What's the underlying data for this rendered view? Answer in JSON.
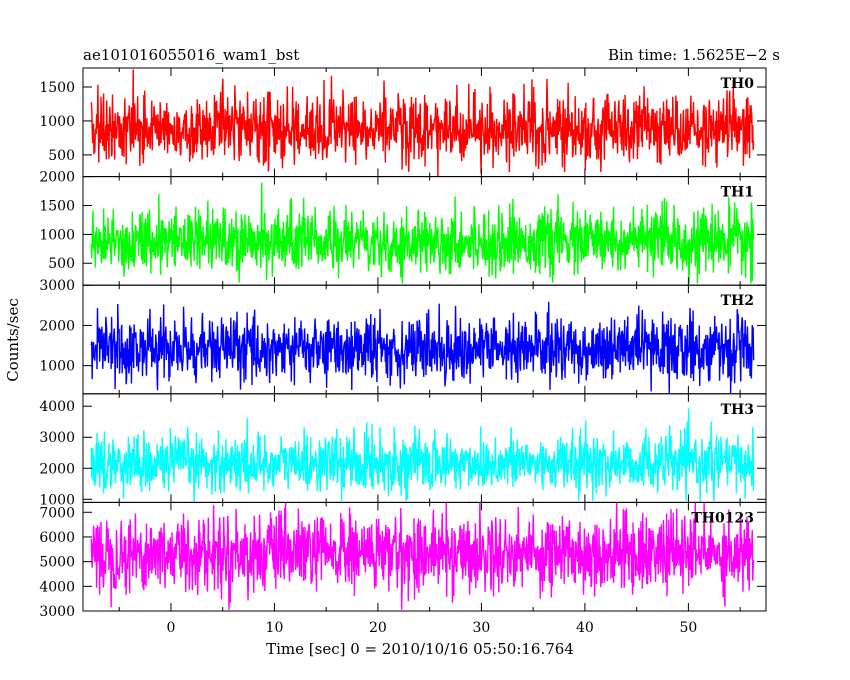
{
  "header": {
    "left_title": "ae101016055016_wam1_bst",
    "right_title": "Bin time: 1.5625E−2 s"
  },
  "chart_data": {
    "type": "line",
    "ylabel": "Counts/sec",
    "xlabel": "Time [sec] 0 = 2010/10/16 05:50:16.764",
    "xlim": [
      -8.5,
      57.5
    ],
    "data_x_range": [
      -7.7,
      56.3
    ],
    "x_ticks": [
      0,
      10,
      20,
      30,
      40,
      50
    ],
    "grid": false,
    "panels": [
      {
        "name": "TH0",
        "color": "#ff0000",
        "ylim": [
          180,
          1780
        ],
        "y_ticks": [
          500,
          1000,
          1500
        ],
        "y_tick_labels": [
          "500",
          "1000",
          "1500"
        ],
        "mean": 880,
        "std": 260,
        "min": 180,
        "max": 1760
      },
      {
        "name": "TH1",
        "color": "#00ff00",
        "ylim": [
          120,
          2000
        ],
        "y_ticks": [
          500,
          1000,
          1500,
          2000
        ],
        "y_tick_labels": [
          "500",
          "1000",
          "1500",
          "2000"
        ],
        "mean": 880,
        "std": 270,
        "min": 150,
        "max": 1900
      },
      {
        "name": "TH2",
        "color": "#0000ff",
        "ylim": [
          300,
          3000
        ],
        "y_ticks": [
          1000,
          2000,
          3000
        ],
        "y_tick_labels": [
          "1000",
          "2000",
          "3000"
        ],
        "mean": 1420,
        "std": 400,
        "min": 300,
        "max": 3000
      },
      {
        "name": "TH3",
        "color": "#00ffff",
        "ylim": [
          900,
          4400
        ],
        "y_ticks": [
          1000,
          2000,
          3000,
          4000
        ],
        "y_tick_labels": [
          "1000",
          "2000",
          "3000",
          "4000"
        ],
        "mean": 2170,
        "std": 460,
        "min": 900,
        "max": 4350
      },
      {
        "name": "TH0123",
        "color": "#ff00ff",
        "ylim": [
          3000,
          7400
        ],
        "y_ticks": [
          3000,
          4000,
          5000,
          6000,
          7000
        ],
        "y_tick_labels": [
          "3000",
          "4000",
          "5000",
          "6000",
          "7000"
        ],
        "mean": 5350,
        "std": 780,
        "min": 3050,
        "max": 7400
      }
    ]
  }
}
